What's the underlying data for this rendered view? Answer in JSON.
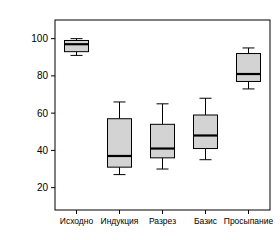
{
  "chart_data": {
    "type": "box",
    "categories": [
      "Исходно",
      "Индукция",
      "Разрез",
      "Базис",
      "Просыпание"
    ],
    "min": [
      91,
      27,
      30,
      35,
      73
    ],
    "q1": [
      93,
      31,
      36,
      41,
      77
    ],
    "median": [
      97,
      37,
      41,
      48,
      81
    ],
    "q3": [
      99,
      57,
      54,
      59,
      92
    ],
    "max": [
      100,
      66,
      65,
      68,
      95
    ],
    "color": "#d3d3d3",
    "ylim": [
      8,
      110
    ],
    "yticks": [
      20,
      40,
      60,
      80,
      100
    ],
    "grid": false
  }
}
